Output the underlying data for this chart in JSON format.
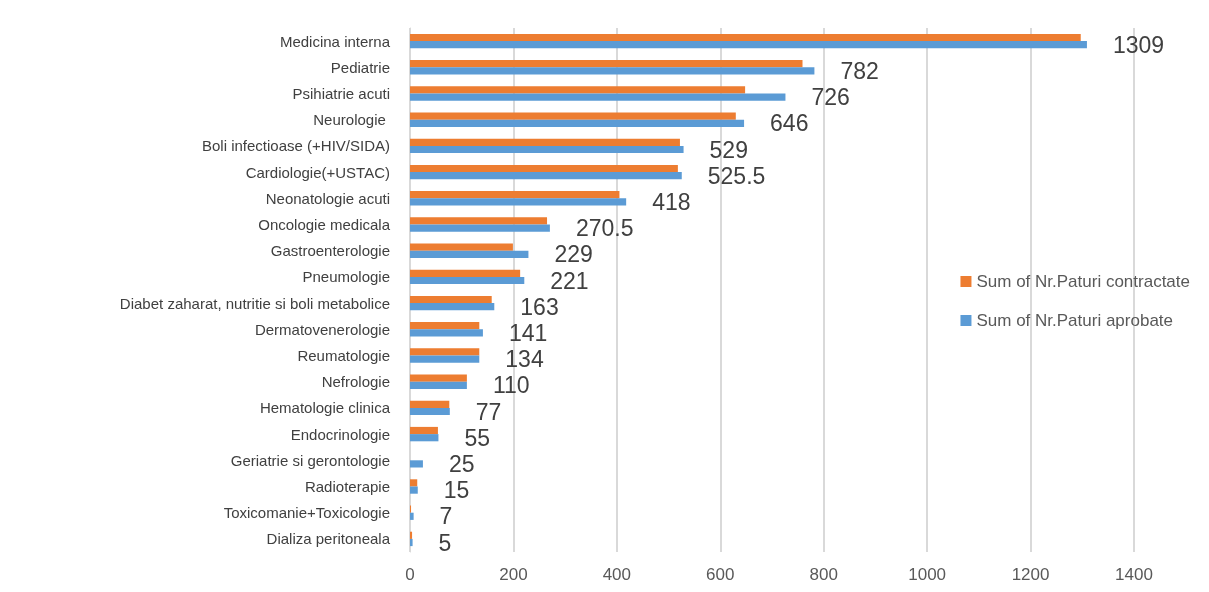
{
  "chart_data": {
    "type": "bar",
    "orientation": "horizontal",
    "categories": [
      "Medicina interna",
      "Pediatrie",
      "Psihiatrie acuti",
      "Neurologie ",
      "Boli infectioase (+HIV/SIDA)",
      "Cardiologie(+USTAC)",
      "Neonatologie acuti",
      "Oncologie medicala",
      "Gastroenterologie",
      "Pneumologie",
      "Diabet zaharat, nutritie si boli metabolice",
      "Dermatovenerologie",
      "Reumatologie",
      "Nefrologie",
      "Hematologie clinica",
      "Endocrinologie",
      "Geriatrie si gerontologie",
      "Radioterapie",
      "Toxicomanie+Toxicologie",
      "Dializa peritoneala"
    ],
    "series": [
      {
        "name": "Sum of Nr.Paturi contractate",
        "color": "#ed7d31",
        "values": [
          1297,
          759,
          648,
          630,
          522,
          518,
          405,
          265,
          199,
          213,
          158,
          134,
          134,
          110,
          76,
          54,
          0,
          14,
          2,
          4
        ]
      },
      {
        "name": "Sum of Nr.Paturi aprobate",
        "color": "#5b9bd5",
        "values": [
          1309,
          782,
          726,
          646,
          529,
          525.5,
          418,
          270.5,
          229,
          221,
          163,
          141,
          134,
          110,
          77,
          55,
          25,
          15,
          7,
          5
        ],
        "value_labels": [
          "1309",
          "782",
          "726",
          "646",
          "529",
          "525.5",
          "418",
          "270.5",
          "229",
          "221",
          "163",
          "141",
          "134",
          "110",
          "77",
          "55",
          "25",
          "15",
          "7",
          "5"
        ]
      }
    ],
    "xlim": [
      0,
      1400
    ],
    "xticks": [
      0,
      200,
      400,
      600,
      800,
      1000,
      1200,
      1400
    ],
    "grid": "x",
    "legend": "right"
  }
}
